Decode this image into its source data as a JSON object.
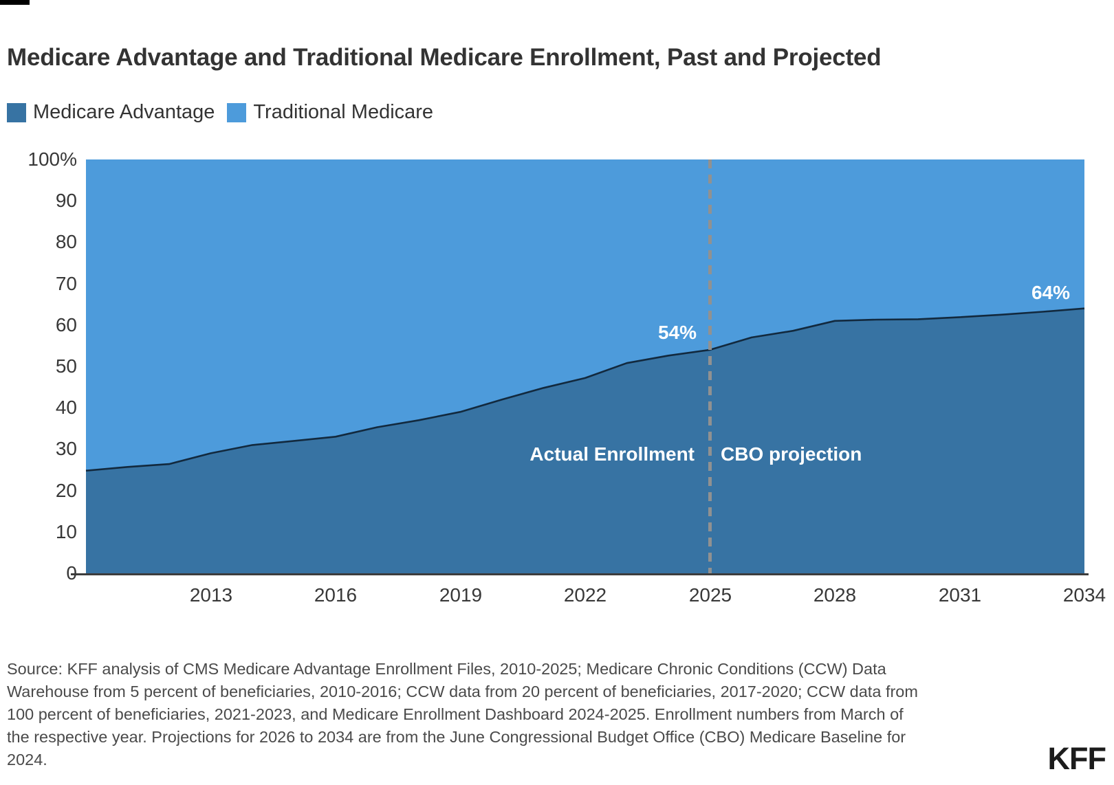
{
  "header": {
    "title": "Medicare Advantage and Traditional Medicare Enrollment, Past and Projected"
  },
  "legend": {
    "items": [
      {
        "label": "Medicare Advantage",
        "color": "#3773A3"
      },
      {
        "label": "Traditional Medicare",
        "color": "#4D9BDB"
      }
    ]
  },
  "chart_data": {
    "type": "area",
    "subtype": "stacked-100-percent-share",
    "title": "Medicare Advantage and Traditional Medicare Enrollment, Past and Projected",
    "x": [
      2010,
      2011,
      2012,
      2013,
      2014,
      2015,
      2016,
      2017,
      2018,
      2019,
      2020,
      2021,
      2022,
      2023,
      2024,
      2025,
      2026,
      2027,
      2028,
      2029,
      2030,
      2031,
      2032,
      2033,
      2034
    ],
    "xlim": [
      2010,
      2034
    ],
    "ylim": [
      0,
      100
    ],
    "xticks": [
      2013,
      2016,
      2019,
      2022,
      2025,
      2028,
      2031,
      2034
    ],
    "yticks": [
      "100%",
      "90",
      "80",
      "70",
      "60",
      "50",
      "40",
      "30",
      "20",
      "10",
      "0"
    ],
    "series": [
      {
        "name": "Medicare Advantage",
        "color": "#3773A3",
        "values": [
          24.8,
          25.7,
          26.4,
          29,
          31,
          32,
          33,
          35.3,
          37,
          39,
          42,
          44.8,
          47.2,
          50.8,
          52.6,
          54,
          57,
          58.6,
          61,
          61.3,
          61.4,
          61.9,
          62.5,
          63.2,
          64
        ]
      },
      {
        "name": "Traditional Medicare",
        "color": "#4D9BDB",
        "values": [
          75.2,
          74.3,
          73.6,
          71,
          69,
          68,
          67,
          64.7,
          63,
          61,
          58,
          55.2,
          52.8,
          49.2,
          47.4,
          46,
          43,
          41.4,
          39,
          38.7,
          38.6,
          38.1,
          37.5,
          36.8,
          36
        ]
      }
    ],
    "divider": {
      "year": 2025,
      "style": "dashed",
      "color": "#919191"
    },
    "annotations": {
      "label_2025": "54%",
      "label_2034": "64%",
      "left_region": "Actual Enrollment",
      "right_region": "CBO projection"
    },
    "boundary_line_color": "#12293E",
    "axis_line_color": "#3C3C3C",
    "grid": false,
    "legend_position": "top-left"
  },
  "source": {
    "text": "Source: KFF analysis of CMS Medicare Advantage Enrollment Files, 2010-2025; Medicare Chronic Conditions (CCW) Data\nWarehouse from 5 percent of beneficiaries, 2010-2016; CCW data from 20 percent of beneficiaries, 2017-2020; CCW data from\n100 percent of beneficiaries, 2021-2023, and Medicare Enrollment Dashboard 2024-2025. Enrollment numbers from March of\nthe respective year. Projections for 2026 to 2034 are from the June Congressional Budget Office (CBO) Medicare Baseline for\n2024."
  },
  "branding": {
    "logo_text": "KFF"
  }
}
